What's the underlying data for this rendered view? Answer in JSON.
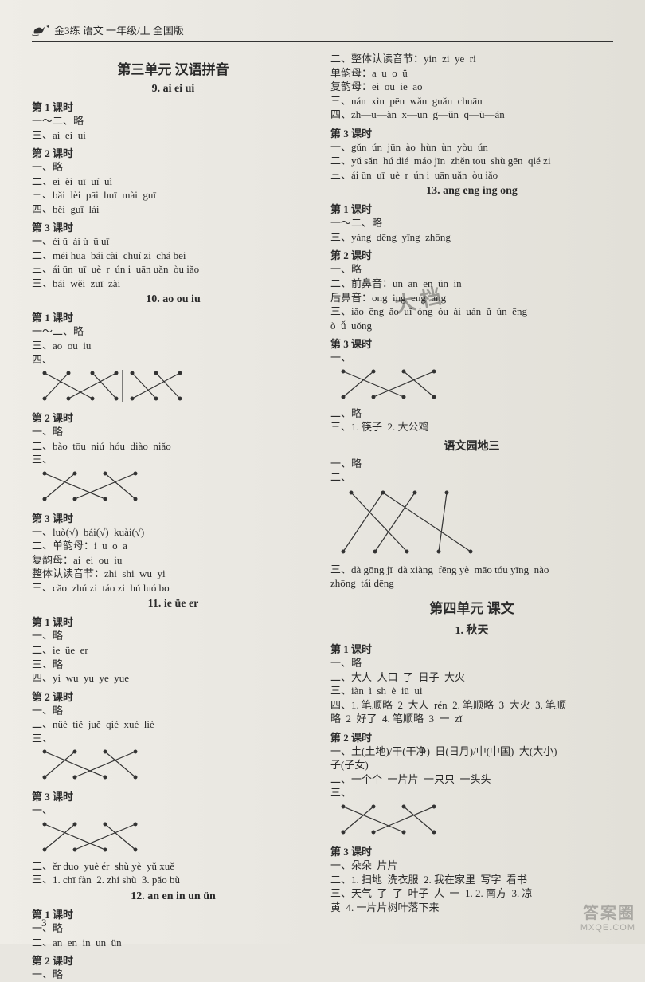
{
  "header": {
    "text": "金3练  语文  一年级/上  全国版"
  },
  "page_number": "3",
  "watermark": {
    "line1": "答案圈",
    "line2": "MXQE.COM"
  },
  "stamp_text": "大\n档",
  "svg": {
    "cross4_w": 140,
    "cross4_h": 44,
    "cross3_w": 100,
    "cross3_h": 44,
    "cross2x4_w": 200,
    "cross2x4_h": 44,
    "cross6_w": 180,
    "cross6_h": 90,
    "dot_r": 2.5,
    "stroke": "#333",
    "stroke_w": 1.2
  },
  "left": [
    {
      "t": "unit",
      "v": "第三单元  汉语拼音"
    },
    {
      "t": "sec",
      "v": "9. ai  ei  ui"
    },
    {
      "t": "les",
      "v": "第 1 课时"
    },
    {
      "t": "l",
      "v": "一～二、略"
    },
    {
      "t": "l",
      "v": "三、ai  ei  ui"
    },
    {
      "t": "les",
      "v": "第 2 课时"
    },
    {
      "t": "l",
      "v": "一、略"
    },
    {
      "t": "l",
      "v": "二、ēi  èi  uī  uí  uì"
    },
    {
      "t": "l",
      "v": "三、bǎi  lèi  pāi  huī  mài  guī"
    },
    {
      "t": "l",
      "v": "四、běi  guī  lái"
    },
    {
      "t": "les",
      "v": "第 3 课时"
    },
    {
      "t": "l",
      "v": "一、éi ū  ái ù  ū uī"
    },
    {
      "t": "l",
      "v": "二、méi huā  bái cài  chuí zi  chá bēi"
    },
    {
      "t": "l",
      "v": "三、ái ūn  uī  uè  r  ún i  uān uǎn  òu iǎo"
    },
    {
      "t": "l",
      "v": "三、bái  wěi  zuī  zài"
    },
    {
      "t": "sec",
      "v": "10. ao  ou  iu"
    },
    {
      "t": "les",
      "v": "第 1 课时"
    },
    {
      "t": "l",
      "v": "一～二、略"
    },
    {
      "t": "l",
      "v": "三、ao  ou  iu"
    },
    {
      "t": "l",
      "v": "四、"
    },
    {
      "t": "cross2x4"
    },
    {
      "t": "les",
      "v": "第 2 课时"
    },
    {
      "t": "l",
      "v": "一、略"
    },
    {
      "t": "l",
      "v": "二、bào  tōu  niú  hóu  diào  niǎo"
    },
    {
      "t": "l",
      "v": "三、"
    },
    {
      "t": "cross4"
    },
    {
      "t": "les",
      "v": "第 3 课时"
    },
    {
      "t": "l",
      "v": "一、luò(√)  bái(√)  kuài(√)"
    },
    {
      "t": "l",
      "v": "二、单韵母：i  u  o  a"
    },
    {
      "t": "l",
      "v": "复韵母：ai  ei  ou  iu"
    },
    {
      "t": "l",
      "v": "整体认读音节：zhi  shi  wu  yi"
    },
    {
      "t": "l",
      "v": "三、cǎo  zhú zi  táo zi  hú luó bo"
    },
    {
      "t": "sec",
      "v": "11. ie  üe  er"
    },
    {
      "t": "les",
      "v": "第 1 课时"
    },
    {
      "t": "l",
      "v": "一、略"
    },
    {
      "t": "l",
      "v": "二、ie  üe  er"
    },
    {
      "t": "l",
      "v": "三、略"
    },
    {
      "t": "l",
      "v": "四、yi  wu  yu  ye  yue"
    },
    {
      "t": "les",
      "v": "第 2 课时"
    },
    {
      "t": "l",
      "v": "一、略"
    },
    {
      "t": "l",
      "v": "二、nüè  tiě  juě  qié  xué  liè"
    },
    {
      "t": "l",
      "v": "三、"
    },
    {
      "t": "cross4"
    },
    {
      "t": "les",
      "v": "第 3 课时"
    },
    {
      "t": "l",
      "v": "一、"
    },
    {
      "t": "cross4"
    },
    {
      "t": "l",
      "v": "二、ěr duo  yuè ér  shù yè  yǔ xuě"
    },
    {
      "t": "l",
      "v": "三、1. chī fàn  2. zhí shù  3. pǎo bù"
    },
    {
      "t": "sec",
      "v": "12. an  en  in  un  ün"
    },
    {
      "t": "les",
      "v": "第 1 课时"
    },
    {
      "t": "l",
      "v": "一、略"
    },
    {
      "t": "l",
      "v": "二、an  en  in  un  ün"
    },
    {
      "t": "les",
      "v": "第 2 课时"
    },
    {
      "t": "l",
      "v": "一、略"
    }
  ],
  "right": [
    {
      "t": "l",
      "v": "二、整体认读音节：yin  zi  ye  ri"
    },
    {
      "t": "l",
      "v": "单韵母：a  u  o  ü"
    },
    {
      "t": "l",
      "v": "复韵母：ei  ou  ie  ao"
    },
    {
      "t": "l",
      "v": "三、nán  xìn  pēn  wǎn  guǎn  chuān"
    },
    {
      "t": "l",
      "v": "四、zh—u—àn  x—ūn  g—ǔn  q—ü—án"
    },
    {
      "t": "les",
      "v": "第 3 课时"
    },
    {
      "t": "l",
      "v": "一、gǔn  ún  jūn  ào  hùn  ùn  yòu  ún"
    },
    {
      "t": "l",
      "v": "二、yǔ sǎn  hú dié  máo jīn  zhěn tou  shù gēn  qié zi"
    },
    {
      "t": "l",
      "v": "三、ái ūn  uī  uè  r  ún i  uān uǎn  òu iǎo"
    },
    {
      "t": "sec",
      "v": "13. ang  eng  ing  ong"
    },
    {
      "t": "les",
      "v": "第 1 课时"
    },
    {
      "t": "l",
      "v": "一～二、略"
    },
    {
      "t": "l",
      "v": "三、yáng  dēng  yīng  zhōng"
    },
    {
      "t": "les",
      "v": "第 2 课时"
    },
    {
      "t": "l",
      "v": "一、略"
    },
    {
      "t": "l",
      "v": "二、前鼻音：un  an  en  ün  in"
    },
    {
      "t": "l",
      "v": "后鼻音：ong  ing  eng  ang"
    },
    {
      "t": "l",
      "v": "三、iǎo  ēng  ǎo  uǐ  óng  óu  ài  uán  ǔ  ún  ēng"
    },
    {
      "t": "l",
      "v": "ò  ǚ  uǒng"
    },
    {
      "t": "les",
      "v": "第 3 课时"
    },
    {
      "t": "l",
      "v": "一、"
    },
    {
      "t": "cross4"
    },
    {
      "t": "l",
      "v": "二、略"
    },
    {
      "t": "l",
      "v": "三、1. 筷子  2. 大公鸡"
    },
    {
      "t": "sec",
      "v": "语文园地三"
    },
    {
      "t": "l",
      "v": "一、略"
    },
    {
      "t": "l",
      "v": "二、"
    },
    {
      "t": "cross6"
    },
    {
      "t": "l",
      "v": "三、dà gōng jī  dà xiàng  fēng yè  māo tóu yīng  nào"
    },
    {
      "t": "l",
      "v": "zhōng  tái dēng"
    },
    {
      "t": "unit",
      "v": "第四单元  课文"
    },
    {
      "t": "sec",
      "v": "1. 秋天"
    },
    {
      "t": "les",
      "v": "第 1 课时"
    },
    {
      "t": "l",
      "v": "一、略"
    },
    {
      "t": "l",
      "v": "二、大人  人口  了  日子  大火"
    },
    {
      "t": "l",
      "v": "三、iàn  ì  sh  è  iū  uì"
    },
    {
      "t": "l",
      "v": "四、1. 笔顺略  2  大人  rén  2. 笔顺略  3  大火  3. 笔顺"
    },
    {
      "t": "l",
      "v": "略  2  好了  4. 笔顺略  3  一  zǐ"
    },
    {
      "t": "les",
      "v": "第 2 课时"
    },
    {
      "t": "l",
      "v": "一、土(土地)/干(干净)  日(日月)/中(中国)  大(大小)"
    },
    {
      "t": "l",
      "v": "子(子女)"
    },
    {
      "t": "l",
      "v": "二、一个个  一片片  一只只  一头头"
    },
    {
      "t": "l",
      "v": "三、"
    },
    {
      "t": "cross4"
    },
    {
      "t": "les",
      "v": "第 3 课时"
    },
    {
      "t": "l",
      "v": "一、朵朵  片片"
    },
    {
      "t": "l",
      "v": "二、1. 扫地  洗衣服  2. 我在家里  写字  看书"
    },
    {
      "t": "l",
      "v": "三、天气  了  了  叶子  人  一  1. 2. 南方  3. 凉"
    },
    {
      "t": "l",
      "v": "黄  4. 一片片树叶落下来"
    }
  ]
}
